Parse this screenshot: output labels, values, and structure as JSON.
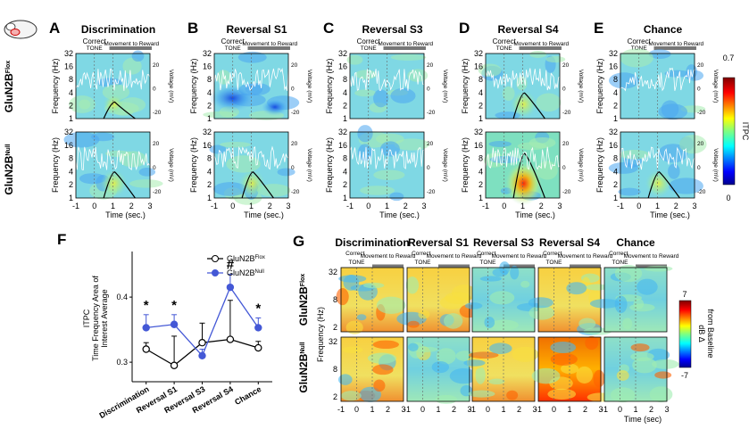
{
  "top": {
    "panels": [
      {
        "letter": "A",
        "title": "Discrimination",
        "show_correct_label": true,
        "peak": [
          0.15,
          0.35
        ]
      },
      {
        "letter": "B",
        "title": "Reversal S1",
        "show_correct_label": true,
        "peak": [
          0.1,
          0.35
        ]
      },
      {
        "letter": "C",
        "title": "Reversal S3",
        "show_correct_label": true,
        "peak": [
          0.05,
          0.05
        ]
      },
      {
        "letter": "D",
        "title": "Reversal S4",
        "show_correct_label": true,
        "peak": [
          0.35,
          0.75
        ]
      },
      {
        "letter": "E",
        "title": "Chance",
        "show_correct_label": true,
        "peak": [
          0.05,
          0.35
        ]
      }
    ],
    "row_labels": [
      "GluN2B",
      "GluN2B"
    ],
    "row_superscripts": [
      "Flox",
      "Null"
    ],
    "event_labels": {
      "correct": "Correct",
      "tone": "TONE",
      "movement": "Movement to Reward"
    },
    "freq_axis_label": "Frequency (Hz)",
    "freq_ticks": [
      "32",
      "16",
      "8",
      "4",
      "2",
      "1"
    ],
    "voltage_axis_label": "Voltage (mV)",
    "voltage_ticks": [
      "20",
      "0",
      "-20"
    ],
    "time_ticks": [
      "-1",
      "0",
      "1",
      "2",
      "3"
    ],
    "time_label": "Time (sec.)",
    "colorbar": {
      "max": "0.7",
      "min": "0",
      "label": "ITPC"
    }
  },
  "panel_F": {
    "letter": "F",
    "ylabel_lines": [
      "ITPC",
      "Time Frequency Area of",
      "Interest Average"
    ],
    "legend": [
      "GluN2B",
      "GluN2B"
    ],
    "legend_superscripts": [
      "Flox",
      "Null"
    ],
    "significance": [
      "*",
      "*",
      "",
      "#",
      "*"
    ],
    "colors": {
      "flox": "#000000",
      "null": "#4458d6"
    }
  },
  "chart_data": {
    "type": "line",
    "categories": [
      "Discrimination",
      "Reversal S1",
      "Reversal S3",
      "Reversal S4",
      "Chance"
    ],
    "series": [
      {
        "name": "GluN2BFlox",
        "values": [
          0.32,
          0.295,
          0.33,
          0.335,
          0.322
        ],
        "errors": [
          0.01,
          0.045,
          0.03,
          0.06,
          0.01
        ]
      },
      {
        "name": "GluN2BNull",
        "values": [
          0.353,
          0.358,
          0.31,
          0.415,
          0.353
        ],
        "errors": [
          0.02,
          0.015,
          0.01,
          0.02,
          0.015
        ]
      }
    ],
    "ylim": [
      0.27,
      0.47
    ],
    "yticks": [
      "0.3",
      "0.4"
    ]
  },
  "panel_G": {
    "letter": "G",
    "titles": [
      "Discrimination",
      "Reversal S1",
      "Reversal S3",
      "Reversal S4",
      "Chance"
    ],
    "event_labels": {
      "correct": "Correct",
      "tone": "TONE",
      "movement": "Movement to Reward"
    },
    "row_labels": [
      "GluN2B",
      "GluN2B"
    ],
    "row_superscripts": [
      "Flox",
      "Null"
    ],
    "freq_label": "Frequency (Hz)",
    "freq_ticks_top": [
      "32",
      "8",
      "2"
    ],
    "freq_ticks_bottom": [
      "32",
      "8",
      "2"
    ],
    "x_tick_groups": [
      "-1  0  1  2  3",
      "-1  0  1  2  3",
      "-1  0  1  2  3",
      "-1  0  1  2  3",
      "-1  0  1  2  3"
    ],
    "time_label": "Time (sec)",
    "colorbar": {
      "max": "7",
      "min": "-7",
      "label_lines": [
        "dB Δ",
        "from Baseline"
      ]
    },
    "intensity": [
      [
        0.45,
        0.35,
        0.05,
        0.4,
        0.0
      ],
      [
        0.55,
        0.05,
        0.35,
        0.85,
        0.2
      ]
    ]
  }
}
